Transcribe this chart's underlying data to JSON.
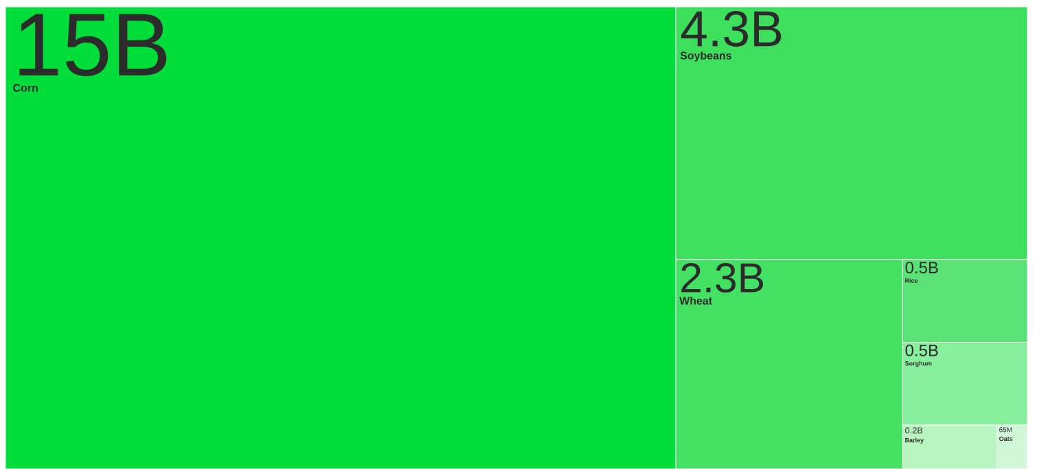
{
  "chart_data": {
    "type": "other",
    "categories": [
      "Corn",
      "Soybeans",
      "Wheat",
      "Rice",
      "Sorghum",
      "Barley",
      "Oats"
    ],
    "values": [
      15000000000,
      4300000000,
      2300000000,
      500000000,
      500000000,
      200000000,
      65000000
    ],
    "value_labels": [
      "15B",
      "4.3B",
      "2.3B",
      "0.5B",
      "0.5B",
      "0.2B",
      "65M"
    ],
    "colors": [
      "#00dd3a",
      "#3ddf5c",
      "#44e063",
      "#5be276",
      "#88ef9f",
      "#b8f5c0",
      "#d2f7d8"
    ]
  }
}
